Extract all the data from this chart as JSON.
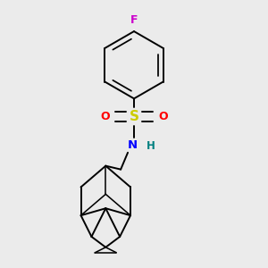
{
  "bg_color": "#ebebeb",
  "black": "#000000",
  "sulfur_color": "#cccc00",
  "oxygen_color": "#ff0000",
  "nitrogen_color": "#0000ff",
  "fluorine_color": "#cc00cc",
  "h_color": "#008080",
  "line_width": 1.4,
  "figsize": [
    3.0,
    3.0
  ],
  "dpi": 100,
  "xlim": [
    0,
    3
  ],
  "ylim": [
    0,
    3
  ]
}
